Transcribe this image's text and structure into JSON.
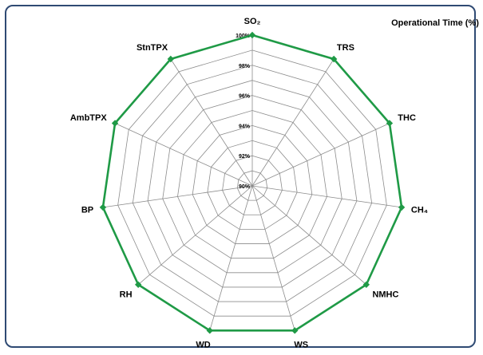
{
  "chart_data": {
    "type": "radar",
    "title": "",
    "legend_label": "Operational Time (%)",
    "legend_position": "top-right",
    "categories": [
      "SO₂",
      "TRS",
      "THC",
      "CH₄",
      "NMHC",
      "WS",
      "WD",
      "RH",
      "BP",
      "AmbTPX",
      "StnTPX"
    ],
    "rlim": [
      90,
      100
    ],
    "ticks": [
      90,
      92,
      94,
      96,
      98,
      100
    ],
    "tick_labels": [
      "90%",
      "92%",
      "94%",
      "96%",
      "98%",
      "100%"
    ],
    "series": [
      {
        "values": [
          100,
          100,
          100,
          100,
          100,
          100,
          100,
          100,
          100,
          100,
          100
        ],
        "color": "#1f9a46"
      }
    ],
    "grid": true
  }
}
